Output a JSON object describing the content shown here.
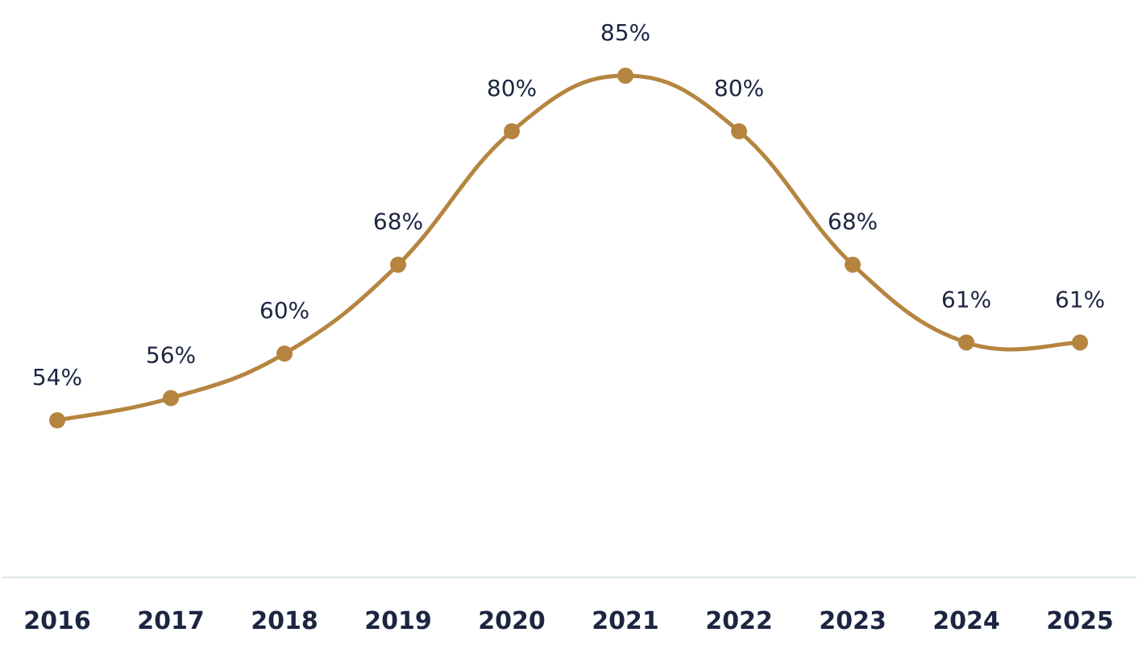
{
  "chart_data": {
    "type": "line",
    "categories": [
      "2016",
      "2017",
      "2018",
      "2019",
      "2020",
      "2021",
      "2022",
      "2023",
      "2024",
      "2025"
    ],
    "series": [
      {
        "values": [
          54,
          56,
          60,
          68,
          80,
          85,
          80,
          68,
          61,
          61
        ],
        "labels": [
          "54%",
          "56%",
          "60%",
          "68%",
          "80%",
          "85%",
          "80%",
          "68%",
          "61%",
          "61%"
        ],
        "color": "#b5853f"
      }
    ],
    "title": "",
    "xlabel": "",
    "ylabel": "",
    "grid": false,
    "legend": "none",
    "line_style": "smooth",
    "axis_color": "#dde7ea",
    "text_color": "#1c2541"
  }
}
